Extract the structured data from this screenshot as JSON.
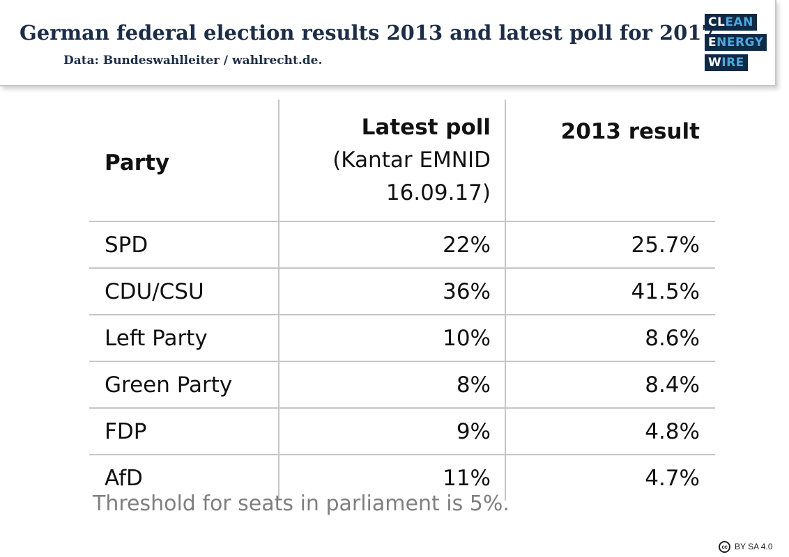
{
  "header": {
    "title": "German federal election results 2013 and latest poll for 2017",
    "subtitle": "Data: Bundeswahlleiter / wahlrecht.de."
  },
  "logo": {
    "rows": [
      {
        "white": "CL",
        "blue": "EAN"
      },
      {
        "white": "E",
        "blue": "NERGY"
      },
      {
        "white": "W",
        "blue": "IRE"
      }
    ],
    "colors": {
      "background": "#0f2a47",
      "white": "#ffffff",
      "blue": "#4ea8dc"
    }
  },
  "chart_data": {
    "type": "table",
    "columns": {
      "party": "Party",
      "poll_title": "Latest poll",
      "poll_sub1": "(Kantar EMNID",
      "poll_sub2": "16.09.17)",
      "result": "2013 result"
    },
    "rows": [
      {
        "party": "SPD",
        "poll": "22%",
        "result": "25.7%"
      },
      {
        "party": "CDU/CSU",
        "poll": "36%",
        "result": "41.5%"
      },
      {
        "party": "Left Party",
        "poll": "10%",
        "result": "8.6%"
      },
      {
        "party": "Green Party",
        "poll": "8%",
        "result": "8.4%"
      },
      {
        "party": "FDP",
        "poll": "9%",
        "result": "4.8%"
      },
      {
        "party": "AfD",
        "poll": "11%",
        "result": "4.7%"
      }
    ]
  },
  "footnote": "Threshold for seats in parliament is 5%.",
  "license": {
    "icon": "cc-icon",
    "icon_text": "cc",
    "text": "BY SA 4.0"
  }
}
